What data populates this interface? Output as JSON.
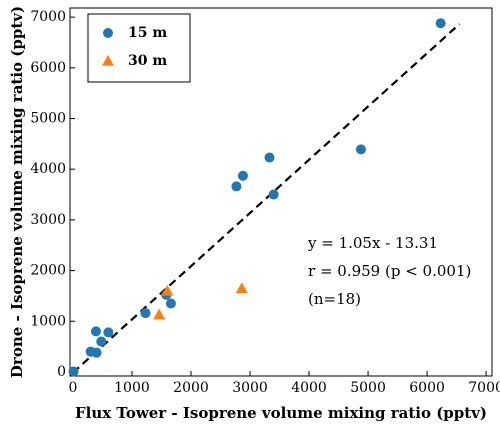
{
  "chart_data": {
    "type": "scatter",
    "xlabel": "Flux Tower - Isoprene volume mixing ratio (pptv)",
    "ylabel": "Drone - Isoprene volume mixing ratio (pptv)",
    "xlim": [
      -50,
      7100
    ],
    "ylim": [
      -80,
      7180
    ],
    "xticks": [
      0,
      1000,
      2000,
      3000,
      4000,
      5000,
      6000,
      7000
    ],
    "yticks": [
      0,
      1000,
      2000,
      3000,
      4000,
      5000,
      6000,
      7000
    ],
    "legend": "upper left",
    "series": [
      {
        "name": "15 m",
        "color": "#1f77b4",
        "marker": "circle",
        "x": [
          10,
          6230,
          4880,
          3330,
          2880,
          2770,
          3400,
          1580,
          1660,
          1230,
          390,
          600,
          480,
          300,
          400
        ],
        "values": [
          10,
          6880,
          4390,
          4230,
          3870,
          3660,
          3500,
          1520,
          1350,
          1160,
          800,
          780,
          600,
          400,
          380
        ]
      },
      {
        "name": "30 m",
        "color": "#ff7f0e",
        "marker": "triangle",
        "x": [
          1600,
          1460,
          2860
        ],
        "values": [
          1600,
          1130,
          1650
        ]
      }
    ],
    "fit": {
      "slope": 1.05,
      "intercept": -13.31,
      "x": [
        0,
        6550
      ]
    },
    "annotations": [
      "y = 1.05x - 13.31",
      "r = 0.959 (p < 0.001)",
      "(n=18)"
    ]
  }
}
